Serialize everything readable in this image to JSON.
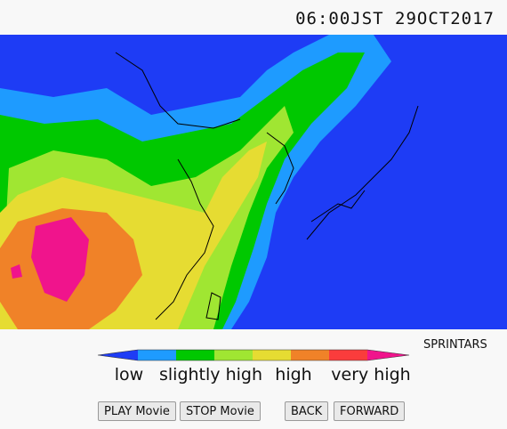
{
  "header": {
    "timestamp": "06:00JST 29OCT2017"
  },
  "legend": {
    "source": "SPRINTARS",
    "labels": [
      "low",
      "slightly high",
      "high",
      "very high"
    ]
  },
  "buttons": [
    "PLAY Movie",
    "STOP Movie",
    "BACK",
    "FORWARD"
  ]
}
